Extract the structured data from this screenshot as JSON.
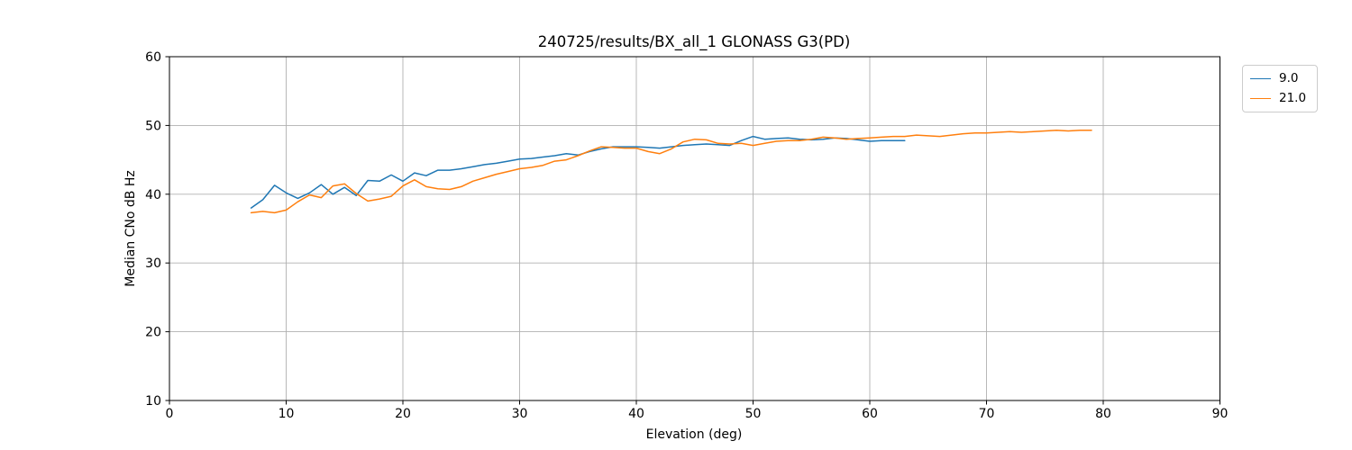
{
  "chart_data": {
    "type": "line",
    "title": "240725/results/BX_all_1 GLONASS G3(PD)",
    "xlabel": "Elevation (deg)",
    "ylabel": "Median CNo dB Hz",
    "xlim": [
      0,
      90
    ],
    "ylim": [
      10,
      60
    ],
    "xticks": [
      0,
      10,
      20,
      30,
      40,
      50,
      60,
      70,
      80,
      90
    ],
    "yticks": [
      10,
      20,
      30,
      40,
      50,
      60
    ],
    "grid": true,
    "legend_position": "outside-right-top",
    "colors": {
      "grid": "#b0b0b0",
      "spine": "#000000",
      "background": "#ffffff"
    },
    "series": [
      {
        "name": "9.0",
        "color": "#1f77b4",
        "x": [
          7,
          8,
          9,
          10,
          11,
          12,
          13,
          14,
          15,
          16,
          17,
          18,
          19,
          20,
          21,
          22,
          23,
          24,
          25,
          26,
          27,
          28,
          29,
          30,
          31,
          32,
          33,
          34,
          35,
          36,
          37,
          38,
          39,
          40,
          41,
          42,
          43,
          44,
          45,
          46,
          47,
          48,
          49,
          50,
          51,
          52,
          53,
          54,
          55,
          56,
          57,
          58,
          59,
          60,
          61,
          62,
          63
        ],
        "y": [
          38.0,
          39.2,
          41.3,
          40.2,
          39.4,
          40.2,
          41.4,
          40.0,
          41.0,
          39.8,
          42.0,
          41.9,
          42.8,
          41.9,
          43.1,
          42.7,
          43.5,
          43.5,
          43.7,
          44.0,
          44.3,
          44.5,
          44.8,
          45.1,
          45.2,
          45.4,
          45.6,
          45.9,
          45.7,
          46.2,
          46.6,
          46.9,
          46.9,
          46.9,
          46.8,
          46.7,
          46.9,
          47.1,
          47.2,
          47.3,
          47.2,
          47.1,
          47.8,
          48.4,
          48.0,
          48.1,
          48.2,
          48.0,
          47.9,
          48.0,
          48.2,
          48.1,
          47.9,
          47.7,
          47.8,
          47.8,
          47.8
        ]
      },
      {
        "name": "21.0",
        "color": "#ff7f0e",
        "x": [
          7,
          8,
          9,
          10,
          11,
          12,
          13,
          14,
          15,
          16,
          17,
          18,
          19,
          20,
          21,
          22,
          23,
          24,
          25,
          26,
          27,
          28,
          29,
          30,
          31,
          32,
          33,
          34,
          35,
          36,
          37,
          38,
          39,
          40,
          41,
          42,
          43,
          44,
          45,
          46,
          47,
          48,
          49,
          50,
          51,
          52,
          53,
          54,
          55,
          56,
          57,
          58,
          59,
          60,
          61,
          62,
          63,
          64,
          65,
          66,
          67,
          68,
          69,
          70,
          71,
          72,
          73,
          74,
          75,
          76,
          77,
          78,
          79
        ],
        "y": [
          37.3,
          37.5,
          37.3,
          37.7,
          38.9,
          39.9,
          39.5,
          41.2,
          41.5,
          40.1,
          39.0,
          39.3,
          39.7,
          41.2,
          42.1,
          41.1,
          40.8,
          40.7,
          41.1,
          41.9,
          42.4,
          42.9,
          43.3,
          43.7,
          43.9,
          44.2,
          44.8,
          45.0,
          45.6,
          46.3,
          46.9,
          46.8,
          46.7,
          46.7,
          46.2,
          45.9,
          46.6,
          47.6,
          48.0,
          47.9,
          47.4,
          47.3,
          47.4,
          47.1,
          47.4,
          47.7,
          47.8,
          47.8,
          48.0,
          48.3,
          48.2,
          48.0,
          48.1,
          48.2,
          48.3,
          48.4,
          48.4,
          48.6,
          48.5,
          48.4,
          48.6,
          48.8,
          48.9,
          48.9,
          49.0,
          49.1,
          49.0,
          49.1,
          49.2,
          49.3,
          49.2,
          49.3,
          49.3
        ]
      }
    ]
  }
}
